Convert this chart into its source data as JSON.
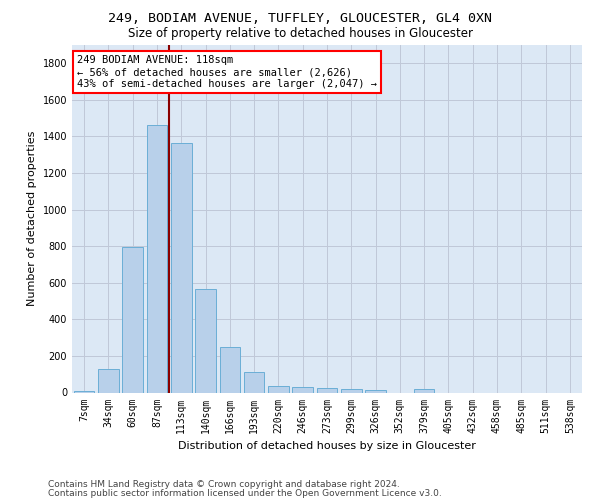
{
  "title1": "249, BODIAM AVENUE, TUFFLEY, GLOUCESTER, GL4 0XN",
  "title2": "Size of property relative to detached houses in Gloucester",
  "xlabel": "Distribution of detached houses by size in Gloucester",
  "ylabel": "Number of detached properties",
  "categories": [
    "7sqm",
    "34sqm",
    "60sqm",
    "87sqm",
    "113sqm",
    "140sqm",
    "166sqm",
    "193sqm",
    "220sqm",
    "246sqm",
    "273sqm",
    "299sqm",
    "326sqm",
    "352sqm",
    "379sqm",
    "405sqm",
    "432sqm",
    "458sqm",
    "485sqm",
    "511sqm",
    "538sqm"
  ],
  "values": [
    10,
    128,
    795,
    1465,
    1365,
    565,
    248,
    110,
    35,
    30,
    25,
    18,
    12,
    0,
    20,
    0,
    0,
    0,
    0,
    0,
    0
  ],
  "bar_color": "#b8d0ea",
  "bar_edge_color": "#6baed6",
  "vline_x": 3.5,
  "vline_color": "#8b0000",
  "annotation_text": "249 BODIAM AVENUE: 118sqm\n← 56% of detached houses are smaller (2,626)\n43% of semi-detached houses are larger (2,047) →",
  "ylim": [
    0,
    1900
  ],
  "yticks": [
    0,
    200,
    400,
    600,
    800,
    1000,
    1200,
    1400,
    1600,
    1800
  ],
  "footer1": "Contains HM Land Registry data © Crown copyright and database right 2024.",
  "footer2": "Contains public sector information licensed under the Open Government Licence v3.0.",
  "bg_color": "#ffffff",
  "plot_bg_color": "#dce8f5",
  "grid_color": "#c0c8d8",
  "title1_fontsize": 9.5,
  "title2_fontsize": 8.5,
  "xlabel_fontsize": 8,
  "ylabel_fontsize": 8,
  "tick_fontsize": 7,
  "annotation_fontsize": 7.5,
  "footer_fontsize": 6.5
}
